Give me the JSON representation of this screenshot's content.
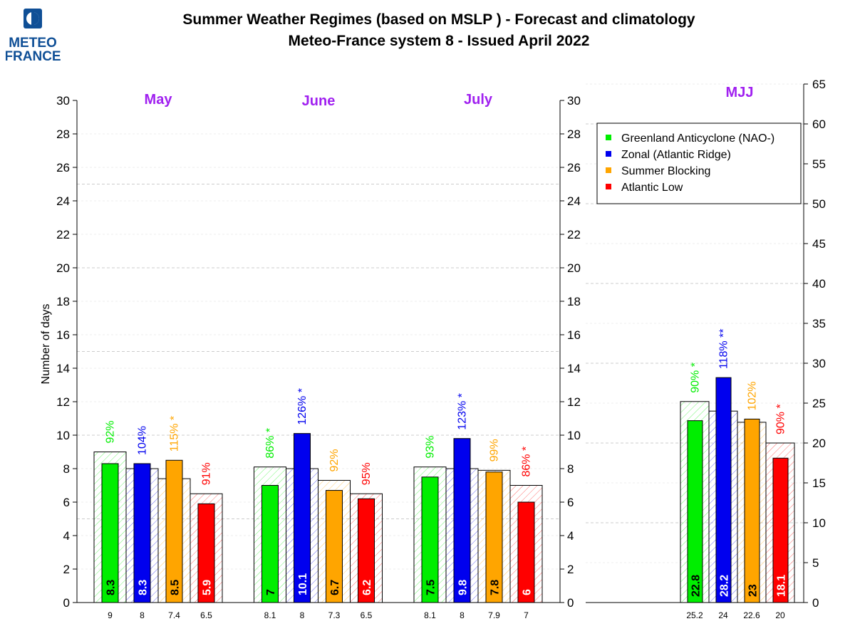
{
  "header": {
    "logo_line1": "METEO",
    "logo_line2": "FRANCE",
    "title_line1": "Summer Weather Regimes (based on MSLP )  -  Forecast and climatology",
    "title_line2": "Meteo-France system 8   -   Issued April 2022"
  },
  "colors": {
    "green": "#00ee00",
    "blue": "#0000ee",
    "orange": "#ffa500",
    "red": "#ff0000",
    "month_label": "#a020f0"
  },
  "legend": {
    "position": "top-right",
    "entries": [
      {
        "name": "Greenland Anticyclone (NAO-)",
        "color": "#00ee00"
      },
      {
        "name": "Zonal (Atlantic Ridge)",
        "color": "#0000ee"
      },
      {
        "name": "Summer Blocking",
        "color": "#ffa500"
      },
      {
        "name": "Atlantic Low",
        "color": "#ff0000"
      }
    ]
  },
  "chart_data": {
    "type": "bar",
    "title": "Summer Weather Regimes (based on MSLP )  -  Forecast and climatology",
    "subtitle": "Meteo-France system 8   -   Issued April 2022",
    "ylabel": "Number of days",
    "grid": true,
    "series_names": [
      "Greenland Anticyclone (NAO-)",
      "Zonal (Atlantic Ridge)",
      "Summer Blocking",
      "Atlantic Low"
    ],
    "panels": [
      {
        "label": "May",
        "ylim": [
          0,
          30
        ],
        "yticks": [
          0,
          2,
          4,
          6,
          8,
          10,
          12,
          14,
          16,
          18,
          20,
          22,
          24,
          26,
          28,
          30
        ],
        "forecast": [
          8.3,
          8.3,
          8.5,
          5.9
        ],
        "forecast_labels": [
          "8.3",
          "8.3",
          "8.5",
          "5.9"
        ],
        "climatology": [
          9,
          8,
          7.4,
          6.5
        ],
        "climatology_labels": [
          "9",
          "8",
          "7.4",
          "6.5"
        ],
        "percent_labels": [
          "92%",
          "104%",
          "115% *",
          "91%"
        ]
      },
      {
        "label": "June",
        "ylim": [
          0,
          30
        ],
        "yticks": [
          0,
          2,
          4,
          6,
          8,
          10,
          12,
          14,
          16,
          18,
          20,
          22,
          24,
          26,
          28,
          30
        ],
        "forecast": [
          7,
          10.1,
          6.7,
          6.2
        ],
        "forecast_labels": [
          "7",
          "10.1",
          "6.7",
          "6.2"
        ],
        "climatology": [
          8.1,
          8,
          7.3,
          6.5
        ],
        "climatology_labels": [
          "8.1",
          "8",
          "7.3",
          "6.5"
        ],
        "percent_labels": [
          "86% *",
          "126% *",
          "92%",
          "95%"
        ]
      },
      {
        "label": "July",
        "ylim": [
          0,
          30
        ],
        "yticks": [
          0,
          2,
          4,
          6,
          8,
          10,
          12,
          14,
          16,
          18,
          20,
          22,
          24,
          26,
          28,
          30
        ],
        "forecast": [
          7.5,
          9.8,
          7.8,
          6
        ],
        "forecast_labels": [
          "7.5",
          "9.8",
          "7.8",
          "6"
        ],
        "climatology": [
          8.1,
          8,
          7.9,
          7
        ],
        "climatology_labels": [
          "8.1",
          "8",
          "7.9",
          "7"
        ],
        "percent_labels": [
          "93%",
          "123% *",
          "99%",
          "86% *"
        ]
      },
      {
        "label": "MJJ",
        "ylim": [
          0,
          65
        ],
        "yticks": [
          0,
          5,
          10,
          15,
          20,
          25,
          30,
          35,
          40,
          45,
          50,
          55,
          60,
          65
        ],
        "forecast": [
          22.8,
          28.2,
          23,
          18.1
        ],
        "forecast_labels": [
          "22.8",
          "28.2",
          "23",
          "18.1"
        ],
        "climatology": [
          25.2,
          24,
          22.6,
          20
        ],
        "climatology_labels": [
          "25.2",
          "24",
          "22.6",
          "20"
        ],
        "percent_labels": [
          "90% *",
          "118% **",
          "102%",
          "90% *"
        ]
      }
    ]
  }
}
